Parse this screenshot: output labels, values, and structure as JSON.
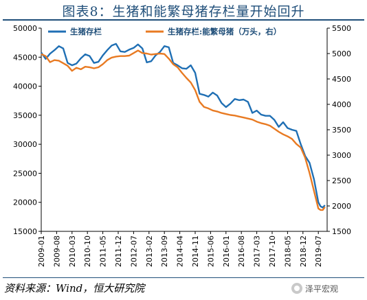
{
  "title": "图表8：生猪和能繁母猪存栏量开始回升",
  "source": "资料来源：Wind，恒大研究院",
  "watermark": "泽平宏观",
  "chart_data": {
    "type": "line",
    "legend_position": "top",
    "grid": false,
    "xlabel": "",
    "ylabel": "",
    "x_tick_labels": [
      "2009-01",
      "2009-08",
      "2010-03",
      "2010-10",
      "2011-05",
      "2011-12",
      "2012-07",
      "2013-02",
      "2013-09",
      "2014-04",
      "2014-11",
      "2015-06",
      "2016-01",
      "2016-08",
      "2017-03",
      "2017-10",
      "2018-05",
      "2018-12",
      "2019-07"
    ],
    "y_left": {
      "min": 15000,
      "max": 50000,
      "ticks": [
        15000,
        20000,
        25000,
        30000,
        35000,
        40000,
        45000,
        50000
      ]
    },
    "y_right": {
      "min": 1500,
      "max": 5500,
      "ticks": [
        1500,
        2000,
        2500,
        3000,
        3500,
        4000,
        4500,
        5000,
        5500
      ]
    },
    "series": [
      {
        "name": "生猪存栏",
        "axis": "left",
        "color": "#1f6fb4",
        "values": [
          [
            "2009-01",
            45800
          ],
          [
            "2009-03",
            44700
          ],
          [
            "2009-05",
            45600
          ],
          [
            "2009-07",
            46200
          ],
          [
            "2009-09",
            46900
          ],
          [
            "2009-11",
            46500
          ],
          [
            "2010-01",
            44000
          ],
          [
            "2010-03",
            43600
          ],
          [
            "2010-05",
            43900
          ],
          [
            "2010-07",
            44800
          ],
          [
            "2010-09",
            45500
          ],
          [
            "2010-11",
            45200
          ],
          [
            "2011-01",
            44000
          ],
          [
            "2011-03",
            44200
          ],
          [
            "2011-05",
            45300
          ],
          [
            "2011-07",
            46200
          ],
          [
            "2011-09",
            47000
          ],
          [
            "2011-11",
            47300
          ],
          [
            "2012-01",
            46000
          ],
          [
            "2012-03",
            45900
          ],
          [
            "2012-05",
            46300
          ],
          [
            "2012-07",
            46600
          ],
          [
            "2012-09",
            47200
          ],
          [
            "2012-11",
            46500
          ],
          [
            "2013-01",
            44100
          ],
          [
            "2013-03",
            44300
          ],
          [
            "2013-05",
            45300
          ],
          [
            "2013-07",
            45900
          ],
          [
            "2013-09",
            46900
          ],
          [
            "2013-11",
            46700
          ],
          [
            "2014-01",
            44000
          ],
          [
            "2014-03",
            43600
          ],
          [
            "2014-05",
            43100
          ],
          [
            "2014-07",
            43000
          ],
          [
            "2014-09",
            43600
          ],
          [
            "2014-11",
            42300
          ],
          [
            "2015-01",
            38700
          ],
          [
            "2015-03",
            38500
          ],
          [
            "2015-05",
            38200
          ],
          [
            "2015-07",
            38900
          ],
          [
            "2015-09",
            38400
          ],
          [
            "2015-11",
            37100
          ],
          [
            "2016-01",
            36400
          ],
          [
            "2016-03",
            37000
          ],
          [
            "2016-05",
            37800
          ],
          [
            "2016-07",
            37600
          ],
          [
            "2016-09",
            37700
          ],
          [
            "2016-11",
            37300
          ],
          [
            "2017-01",
            35400
          ],
          [
            "2017-03",
            35800
          ],
          [
            "2017-05",
            35100
          ],
          [
            "2017-07",
            34900
          ],
          [
            "2017-09",
            34900
          ],
          [
            "2017-11",
            34200
          ],
          [
            "2018-01",
            33000
          ],
          [
            "2018-03",
            33800
          ],
          [
            "2018-05",
            32800
          ],
          [
            "2018-07",
            32500
          ],
          [
            "2018-09",
            32300
          ],
          [
            "2018-11",
            30000
          ],
          [
            "2019-01",
            28000
          ],
          [
            "2019-03",
            26800
          ],
          [
            "2019-05",
            24000
          ],
          [
            "2019-07",
            20000
          ],
          [
            "2019-08",
            19300
          ],
          [
            "2019-09",
            19100
          ],
          [
            "2019-10",
            19500
          ]
        ]
      },
      {
        "name": "生猪存栏:能繁母猪（万头，右）",
        "axis": "right",
        "color": "#e87a22",
        "values": [
          [
            "2009-01",
            4990
          ],
          [
            "2009-03",
            4950
          ],
          [
            "2009-05",
            4830
          ],
          [
            "2009-07",
            4870
          ],
          [
            "2009-09",
            4860
          ],
          [
            "2009-11",
            4810
          ],
          [
            "2010-01",
            4760
          ],
          [
            "2010-03",
            4660
          ],
          [
            "2010-05",
            4720
          ],
          [
            "2010-07",
            4690
          ],
          [
            "2010-09",
            4740
          ],
          [
            "2010-11",
            4730
          ],
          [
            "2011-01",
            4710
          ],
          [
            "2011-03",
            4730
          ],
          [
            "2011-05",
            4790
          ],
          [
            "2011-07",
            4870
          ],
          [
            "2011-09",
            4920
          ],
          [
            "2011-11",
            4940
          ],
          [
            "2012-01",
            4950
          ],
          [
            "2012-03",
            4950
          ],
          [
            "2012-05",
            4960
          ],
          [
            "2012-07",
            5010
          ],
          [
            "2012-09",
            5060
          ],
          [
            "2012-11",
            5010
          ],
          [
            "2013-01",
            5000
          ],
          [
            "2013-03",
            4980
          ],
          [
            "2013-05",
            4990
          ],
          [
            "2013-07",
            5000
          ],
          [
            "2013-09",
            4990
          ],
          [
            "2013-11",
            4900
          ],
          [
            "2014-01",
            4790
          ],
          [
            "2014-03",
            4730
          ],
          [
            "2014-05",
            4620
          ],
          [
            "2014-07",
            4520
          ],
          [
            "2014-09",
            4430
          ],
          [
            "2014-11",
            4280
          ],
          [
            "2015-01",
            4050
          ],
          [
            "2015-03",
            3950
          ],
          [
            "2015-05",
            3920
          ],
          [
            "2015-07",
            3880
          ],
          [
            "2015-09",
            3860
          ],
          [
            "2015-11",
            3830
          ],
          [
            "2016-01",
            3810
          ],
          [
            "2016-03",
            3790
          ],
          [
            "2016-05",
            3780
          ],
          [
            "2016-07",
            3760
          ],
          [
            "2016-09",
            3740
          ],
          [
            "2016-11",
            3720
          ],
          [
            "2017-01",
            3700
          ],
          [
            "2017-03",
            3660
          ],
          [
            "2017-05",
            3630
          ],
          [
            "2017-07",
            3610
          ],
          [
            "2017-09",
            3580
          ],
          [
            "2017-11",
            3520
          ],
          [
            "2018-01",
            3460
          ],
          [
            "2018-03",
            3410
          ],
          [
            "2018-05",
            3370
          ],
          [
            "2018-07",
            3320
          ],
          [
            "2018-09",
            3220
          ],
          [
            "2018-11",
            3150
          ],
          [
            "2019-01",
            2950
          ],
          [
            "2019-03",
            2650
          ],
          [
            "2019-05",
            2300
          ],
          [
            "2019-07",
            1950
          ],
          [
            "2019-08",
            1920
          ],
          [
            "2019-09",
            1920
          ],
          [
            "2019-10",
            1980
          ]
        ]
      }
    ]
  }
}
